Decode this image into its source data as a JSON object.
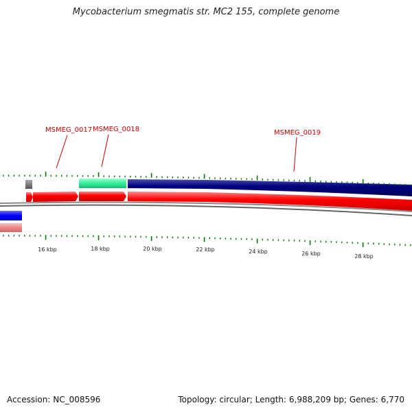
{
  "title": "Mycobacterium smegmatis str. MC2 155, complete genome",
  "genes": [
    {
      "label": "MSMEG_0017"
    },
    {
      "label": "MSMEG_0018"
    },
    {
      "label": "MSMEG_0019"
    }
  ],
  "ticks": [
    "16 kbp",
    "18 kbp",
    "20 kbp",
    "22 kbp",
    "24 kbp",
    "26 kbp",
    "28 kbp"
  ],
  "footer": {
    "accession": "Accession: NC_008596",
    "stats": "Topology: circular; Length: 6,988,209 bp; Genes: 6,770"
  },
  "colors": {
    "gene_label": "#cc0000",
    "cds_forward": "#ff0000",
    "cds_reverse": "#ff0000",
    "feature_navy": "#000080",
    "feature_green": "#33ee99",
    "feature_blue": "#0000ff",
    "feature_pink": "#ee8888",
    "feature_gray": "#666666",
    "tick_green": "#007700",
    "backbone": "#777777"
  }
}
